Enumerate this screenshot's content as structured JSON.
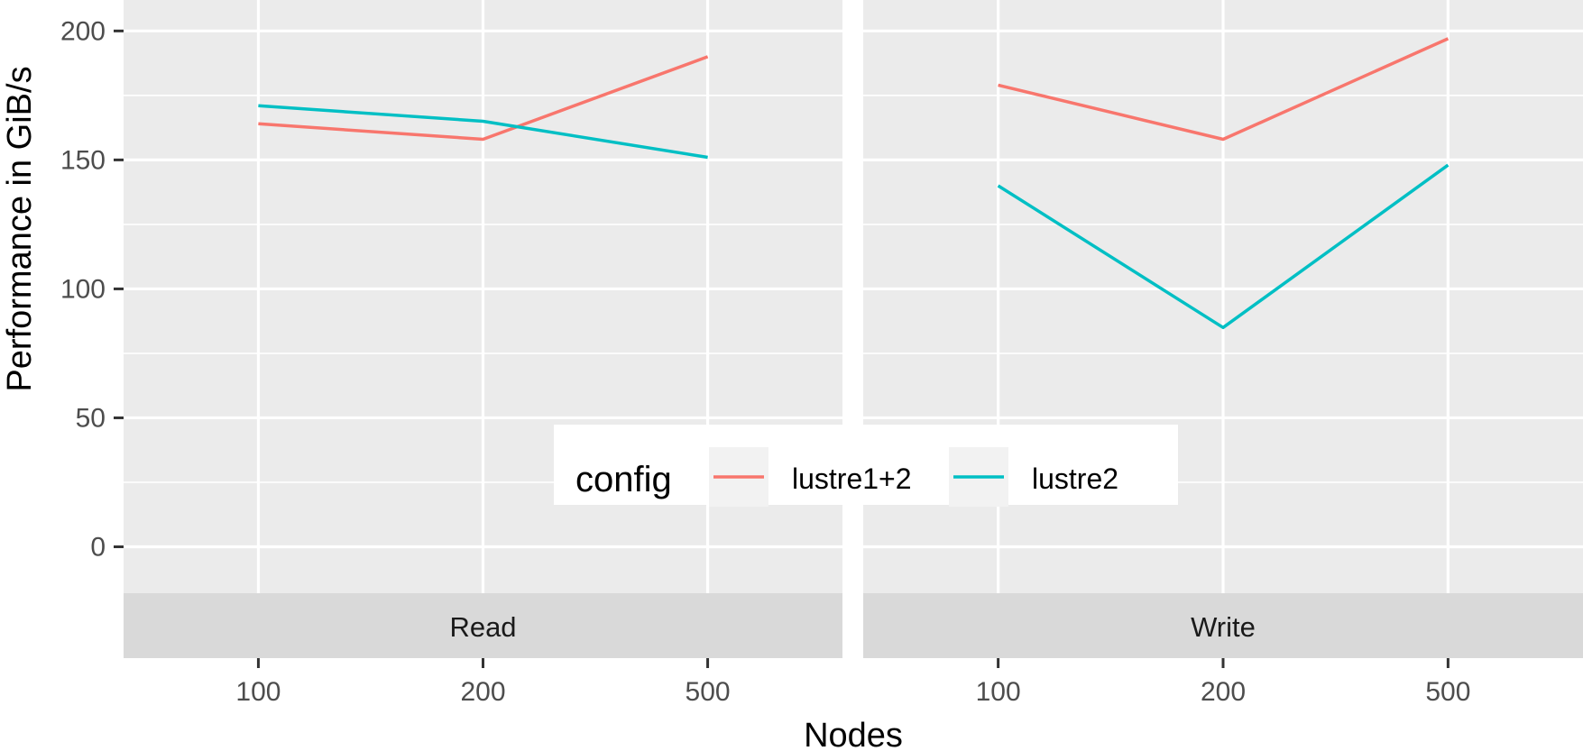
{
  "chart_data": {
    "type": "line",
    "x": [
      "100",
      "200",
      "500"
    ],
    "xlabel": "Nodes",
    "ylabel": "Performance in GiB/s",
    "ylim": [
      -18,
      212
    ],
    "yticks": [
      0,
      50,
      100,
      150,
      200
    ],
    "grid": true,
    "legend": {
      "title": "config",
      "placement": "bottom-center (inside plot)",
      "entries": [
        "lustre1+2",
        "lustre2"
      ]
    },
    "colors": {
      "lustre1+2": "#F8766D",
      "lustre2": "#00BFC4",
      "panel_bg": "#EBEBEB",
      "strip_bg": "#D9D9D9",
      "grid": "#FFFFFF"
    },
    "facets": [
      {
        "label": "Read",
        "series": [
          {
            "name": "lustre1+2",
            "values": [
              164,
              158,
              190
            ]
          },
          {
            "name": "lustre2",
            "values": [
              171,
              165,
              151
            ]
          }
        ]
      },
      {
        "label": "Write",
        "series": [
          {
            "name": "lustre1+2",
            "values": [
              179,
              158,
              197
            ]
          },
          {
            "name": "lustre2",
            "values": [
              140,
              85,
              148
            ]
          }
        ]
      }
    ]
  }
}
